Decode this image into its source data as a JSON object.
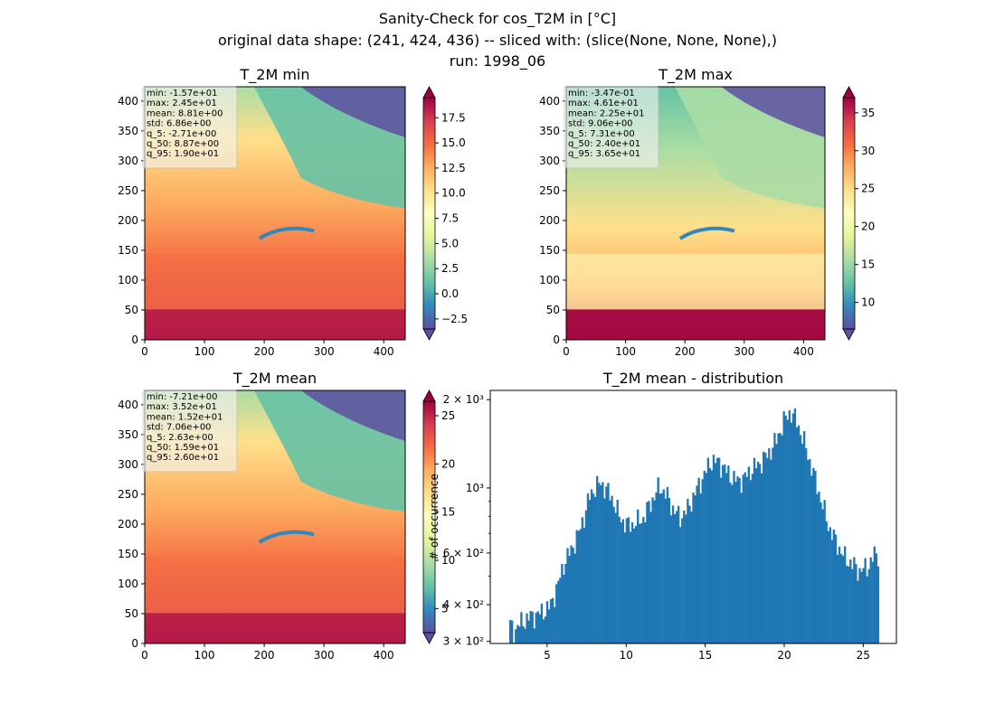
{
  "figure": {
    "title_lines": [
      "Sanity-Check for cos_T2M in [°C]",
      "original data shape: (241, 424, 436) -- sliced with: (slice(None, None, None),)",
      "run: 1998_06"
    ]
  },
  "colormap": {
    "name": "Spectral_r",
    "stops": [
      "#5e4fa2",
      "#3288bd",
      "#66c2a5",
      "#abdda4",
      "#e6f598",
      "#ffffbf",
      "#fee08b",
      "#fdae61",
      "#f46d43",
      "#d53e4f",
      "#9e0142"
    ]
  },
  "chart_data": [
    {
      "type": "heatmap",
      "title": "T_2M min",
      "xlim": [
        0,
        436
      ],
      "ylim": [
        0,
        424
      ],
      "xticks": [
        0,
        100,
        200,
        300,
        400
      ],
      "yticks": [
        0,
        50,
        100,
        150,
        200,
        250,
        300,
        350,
        400
      ],
      "colorbar": {
        "vmin": -3.5,
        "vmax": 19.5,
        "extend": "both",
        "ticks": [
          -2.5,
          0.0,
          2.5,
          5.0,
          7.5,
          10.0,
          12.5,
          15.0,
          17.5
        ],
        "tick_labels": [
          "−2.5",
          "0.0",
          "2.5",
          "5.0",
          "7.5",
          "10.0",
          "12.5",
          "15.0",
          "17.5"
        ]
      },
      "stats": [
        "min: -1.57e+01",
        "max: 2.45e+01",
        "mean: 8.81e+00",
        "std: 6.86e+00",
        "q_5: -2.71e+00",
        "q_50: 8.87e+00",
        "q_95: 1.90e+01"
      ]
    },
    {
      "type": "heatmap",
      "title": "T_2M max",
      "xlim": [
        0,
        436
      ],
      "ylim": [
        0,
        424
      ],
      "xticks": [
        0,
        100,
        200,
        300,
        400
      ],
      "yticks": [
        0,
        50,
        100,
        150,
        200,
        250,
        300,
        350,
        400
      ],
      "colorbar": {
        "vmin": 6.5,
        "vmax": 37,
        "extend": "both",
        "ticks": [
          10,
          15,
          20,
          25,
          30,
          35
        ],
        "tick_labels": [
          "10",
          "15",
          "20",
          "25",
          "30",
          "35"
        ]
      },
      "stats": [
        "min: -3.47e-01",
        "max: 4.61e+01",
        "mean: 2.25e+01",
        "std: 9.06e+00",
        "q_5: 7.31e+00",
        "q_50: 2.40e+01",
        "q_95: 3.65e+01"
      ]
    },
    {
      "type": "heatmap",
      "title": "T_2M mean",
      "xlim": [
        0,
        436
      ],
      "ylim": [
        0,
        424
      ],
      "xticks": [
        0,
        100,
        200,
        300,
        400
      ],
      "yticks": [
        0,
        50,
        100,
        150,
        200,
        250,
        300,
        350,
        400
      ],
      "colorbar": {
        "vmin": 2.5,
        "vmax": 26.5,
        "extend": "both",
        "ticks": [
          5,
          10,
          15,
          20,
          25
        ],
        "tick_labels": [
          "5",
          "10",
          "15",
          "20",
          "25"
        ]
      },
      "stats": [
        "min: -7.21e+00",
        "max: 3.52e+01",
        "mean: 1.52e+01",
        "std: 7.06e+00",
        "q_5: 2.63e+00",
        "q_50: 1.59e+01",
        "q_95: 2.60e+01"
      ]
    },
    {
      "type": "bar",
      "subtype": "histogram",
      "title": "T_2M mean - distribution",
      "ylabel": "# of occurrence",
      "xlabel": "",
      "xlim": [
        1.4,
        27.1
      ],
      "ylim": [
        295,
        2150
      ],
      "yscale": "log",
      "color": "#1f77b4",
      "xticks": [
        5,
        10,
        15,
        20,
        25
      ],
      "xtick_labels": [
        "5",
        "10",
        "15",
        "20",
        "25"
      ],
      "yticks": [
        300,
        400,
        600,
        1000,
        2000
      ],
      "ytick_labels": [
        "3 × 10²",
        "4 × 10²",
        "6 × 10²",
        "10³",
        "2 × 10³"
      ],
      "bins": {
        "start": 2.6,
        "end": 26.0
      },
      "anchors": [
        [
          2.6,
          345
        ],
        [
          2.9,
          325
        ],
        [
          3.4,
          350
        ],
        [
          4.0,
          365
        ],
        [
          4.6,
          375
        ],
        [
          5.2,
          395
        ],
        [
          5.7,
          470
        ],
        [
          6.1,
          560
        ],
        [
          6.5,
          610
        ],
        [
          7.0,
          700
        ],
        [
          7.4,
          820
        ],
        [
          7.7,
          940
        ],
        [
          8.0,
          1000
        ],
        [
          8.4,
          1040
        ],
        [
          8.8,
          980
        ],
        [
          9.2,
          900
        ],
        [
          9.6,
          790
        ],
        [
          10.1,
          745
        ],
        [
          10.6,
          760
        ],
        [
          11.1,
          790
        ],
        [
          11.6,
          900
        ],
        [
          12.1,
          1010
        ],
        [
          12.5,
          960
        ],
        [
          12.9,
          860
        ],
        [
          13.4,
          790
        ],
        [
          13.9,
          850
        ],
        [
          14.4,
          970
        ],
        [
          14.9,
          1100
        ],
        [
          15.4,
          1240
        ],
        [
          15.9,
          1220
        ],
        [
          16.4,
          1130
        ],
        [
          16.9,
          1060
        ],
        [
          17.4,
          1070
        ],
        [
          17.9,
          1150
        ],
        [
          18.5,
          1220
        ],
        [
          19.0,
          1310
        ],
        [
          19.5,
          1450
        ],
        [
          20.0,
          1700
        ],
        [
          20.4,
          1820
        ],
        [
          20.8,
          1680
        ],
        [
          21.2,
          1460
        ],
        [
          21.6,
          1240
        ],
        [
          22.0,
          1050
        ],
        [
          22.4,
          880
        ],
        [
          22.8,
          740
        ],
        [
          23.3,
          650
        ],
        [
          23.8,
          580
        ],
        [
          24.3,
          550
        ],
        [
          24.8,
          520
        ],
        [
          25.3,
          540
        ],
        [
          25.8,
          600
        ],
        [
          26.0,
          590
        ]
      ]
    }
  ]
}
